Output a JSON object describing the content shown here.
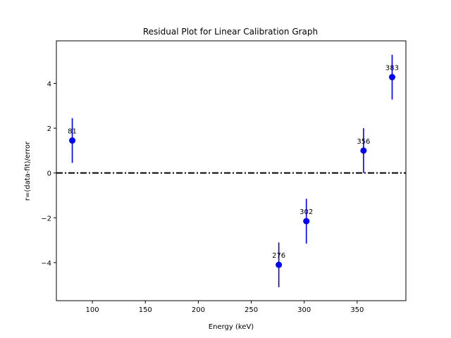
{
  "chart_data": {
    "type": "scatter",
    "title": "Residual Plot for Linear Calibration Graph",
    "xlabel": "Energy (keV)",
    "ylabel": "r=(data-fit)/error",
    "xlim": [
      66,
      396
    ],
    "ylim": [
      -5.7,
      5.9
    ],
    "xticks": [
      100,
      150,
      200,
      250,
      300,
      350
    ],
    "yticks": [
      -4,
      -2,
      0,
      2,
      4
    ],
    "grid": false,
    "reference_line": {
      "y": 0,
      "style": "dash-dot",
      "color": "#000000"
    },
    "series": [
      {
        "color": "#0000ff",
        "points": [
          {
            "x": 81,
            "y": 1.45,
            "error": 1.0,
            "label": "81"
          },
          {
            "x": 276,
            "y": -4.1,
            "error": 1.0,
            "label": "276"
          },
          {
            "x": 302,
            "y": -2.15,
            "error": 1.0,
            "label": "302"
          },
          {
            "x": 356,
            "y": 1.0,
            "error": 1.0,
            "label": "356"
          },
          {
            "x": 383,
            "y": 4.28,
            "error": 1.0,
            "label": "383"
          }
        ]
      }
    ]
  }
}
